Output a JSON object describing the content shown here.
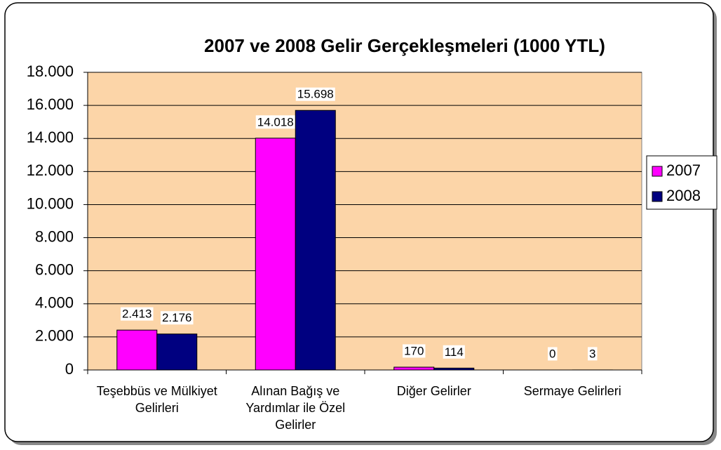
{
  "chart_data": {
    "type": "bar",
    "title": "2007 ve 2008 Gelir Gerçekleşmeleri (1000 YTL)",
    "categories": [
      "Teşebbüs ve Mülkiyet Gelirleri",
      "Alınan Bağış ve Yardımlar ile Özel Gelirler",
      "Diğer Gelirler",
      "Sermaye Gelirleri"
    ],
    "series": [
      {
        "name": "2007",
        "color": "#ff00ff",
        "values": [
          2413,
          14018,
          170,
          0
        ],
        "value_labels": [
          "2.413",
          "14.018",
          "170",
          "0"
        ]
      },
      {
        "name": "2008",
        "color": "#000080",
        "values": [
          2176,
          15698,
          114,
          3
        ],
        "value_labels": [
          "2.176",
          "15.698",
          "114",
          "3"
        ]
      }
    ],
    "ylim": [
      0,
      18000
    ],
    "yticks": [
      0,
      {
        "value": 2000,
        "label": "2.000"
      },
      {
        "value": 4000,
        "label": "4.000"
      },
      {
        "value": 6000,
        "label": "6.000"
      },
      {
        "value": 8000,
        "label": "8.000"
      },
      {
        "value": 10000,
        "label": "10.000"
      },
      {
        "value": 12000,
        "label": "12.000"
      },
      {
        "value": 14000,
        "label": "14.000"
      },
      {
        "value": 16000,
        "label": "16.000"
      },
      {
        "value": 18000,
        "label": "18.000"
      }
    ],
    "grid": true,
    "legend": "right"
  }
}
